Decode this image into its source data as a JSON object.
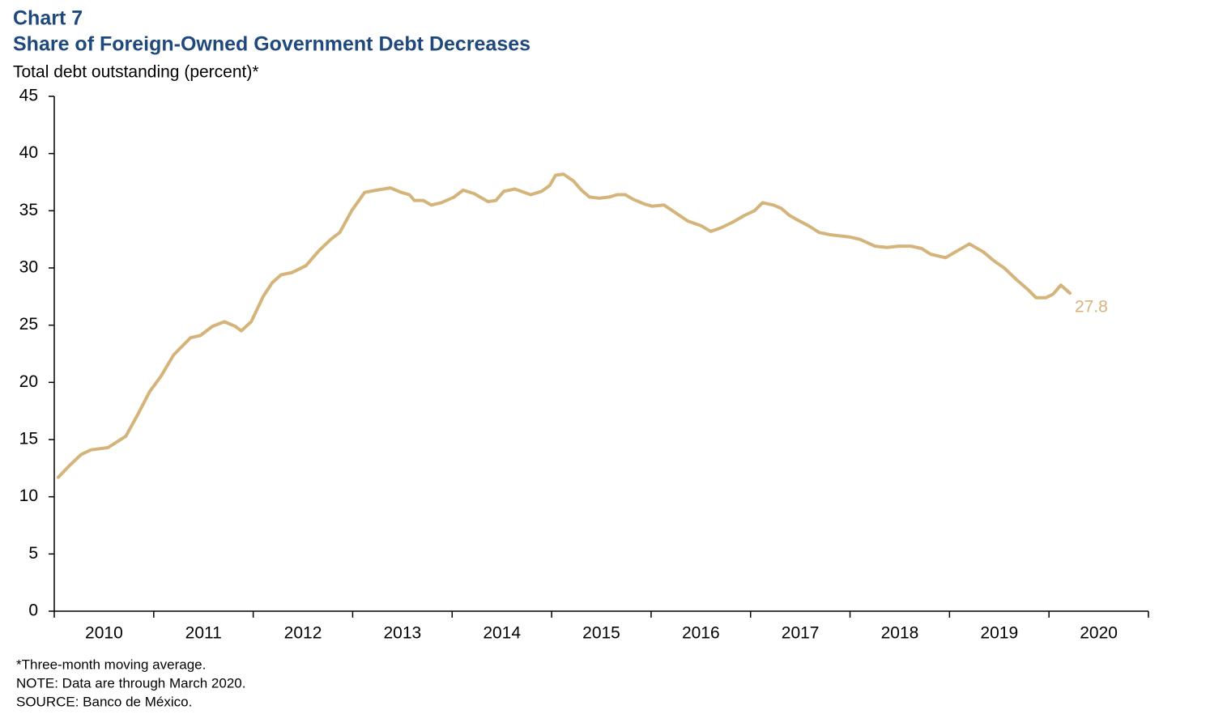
{
  "chart_data": {
    "type": "line",
    "label": "Chart 7",
    "title": "Share of Foreign-Owned Government Debt Decreases",
    "y_axis_label": "Total debt outstanding (percent)*",
    "notes": [
      "*Three-month moving average.",
      "NOTE: Data are through March 2020.",
      "SOURCE: Banco de México."
    ],
    "annotation": "27.8",
    "xlim": [
      2010,
      2021
    ],
    "xticks": [
      2010,
      2011,
      2012,
      2013,
      2014,
      2015,
      2016,
      2017,
      2018,
      2019,
      2020
    ],
    "ylim": [
      0,
      45
    ],
    "yticks": [
      0,
      5,
      10,
      15,
      20,
      25,
      30,
      35,
      40,
      45
    ],
    "grid": false,
    "series": [
      {
        "color": "#d4b47a",
        "x": [
          2010.04,
          2010.15,
          2010.27,
          2010.37,
          2010.54,
          2010.72,
          2010.84,
          2010.96,
          2011.07,
          2011.2,
          2011.37,
          2011.47,
          2011.59,
          2011.71,
          2011.82,
          2011.88,
          2011.98,
          2012.1,
          2012.19,
          2012.28,
          2012.39,
          2012.53,
          2012.66,
          2012.78,
          2012.87,
          2012.99,
          2013.12,
          2013.24,
          2013.38,
          2013.49,
          2013.57,
          2013.62,
          2013.71,
          2013.79,
          2013.89,
          2014.02,
          2014.11,
          2014.22,
          2014.36,
          2014.44,
          2014.52,
          2014.63,
          2014.79,
          2014.9,
          2014.98,
          2015.04,
          2015.12,
          2015.22,
          2015.3,
          2015.38,
          2015.48,
          2015.58,
          2015.66,
          2015.74,
          2015.82,
          2015.93,
          2016.01,
          2016.13,
          2016.25,
          2016.37,
          2016.5,
          2016.6,
          2016.7,
          2016.82,
          2016.94,
          2017.04,
          2017.12,
          2017.23,
          2017.31,
          2017.39,
          2017.47,
          2017.58,
          2017.69,
          2017.8,
          2018.0,
          2018.1,
          2018.25,
          2018.37,
          2018.49,
          2018.61,
          2018.72,
          2018.81,
          2018.96,
          2019.06,
          2019.2,
          2019.34,
          2019.45,
          2019.55,
          2019.67,
          2019.79,
          2019.87,
          2019.97,
          2020.04,
          2020.12,
          2020.21
        ],
        "values": [
          11.7,
          12.7,
          13.7,
          14.1,
          14.3,
          15.3,
          17.2,
          19.2,
          20.5,
          22.4,
          23.9,
          24.1,
          24.9,
          25.3,
          24.9,
          24.5,
          25.3,
          27.5,
          28.7,
          29.4,
          29.6,
          30.2,
          31.5,
          32.5,
          33.1,
          35.0,
          36.6,
          36.8,
          37.0,
          36.6,
          36.4,
          35.9,
          35.9,
          35.5,
          35.7,
          36.2,
          36.8,
          36.5,
          35.8,
          35.9,
          36.7,
          36.9,
          36.4,
          36.7,
          37.2,
          38.1,
          38.2,
          37.6,
          36.8,
          36.2,
          36.1,
          36.2,
          36.4,
          36.4,
          36.0,
          35.6,
          35.4,
          35.5,
          34.8,
          34.1,
          33.7,
          33.2,
          33.5,
          34.0,
          34.6,
          35.0,
          35.7,
          35.5,
          35.2,
          34.6,
          34.2,
          33.7,
          33.1,
          32.9,
          32.7,
          32.5,
          31.9,
          31.8,
          31.9,
          31.9,
          31.7,
          31.2,
          30.9,
          31.4,
          32.1,
          31.4,
          30.6,
          30.0,
          29.0,
          28.1,
          27.4,
          27.4,
          27.7,
          28.5,
          27.8
        ]
      }
    ]
  }
}
